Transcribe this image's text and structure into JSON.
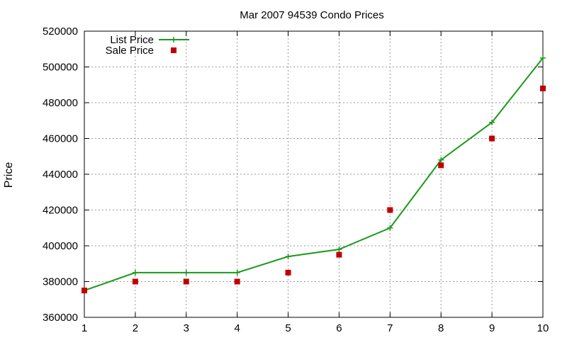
{
  "chart_data": {
    "type": "line",
    "title": "Mar 2007 94539 Condo Prices",
    "xlabel": "",
    "ylabel": "Price",
    "x": [
      1,
      2,
      3,
      4,
      5,
      6,
      7,
      8,
      9,
      10
    ],
    "xlim": [
      1,
      10
    ],
    "ylim": [
      360000,
      520000
    ],
    "x_ticks": [
      "1",
      "2",
      "3",
      "4",
      "5",
      "6",
      "7",
      "8",
      "9",
      "10"
    ],
    "y_ticks": [
      "360000",
      "380000",
      "400000",
      "420000",
      "440000",
      "460000",
      "480000",
      "500000",
      "520000"
    ],
    "grid": true,
    "legend_position": "top-left",
    "series": [
      {
        "name": "List Price",
        "kind": "line-with-plus-markers",
        "color": "#1a9a1a",
        "values": [
          375000,
          385000,
          385000,
          385000,
          394000,
          398000,
          410000,
          448000,
          469000,
          505000
        ]
      },
      {
        "name": "Sale Price",
        "kind": "square-markers",
        "color": "#c00000",
        "values": [
          375000,
          380000,
          380000,
          380000,
          385000,
          395000,
          420000,
          445000,
          460000,
          488000
        ]
      }
    ]
  }
}
